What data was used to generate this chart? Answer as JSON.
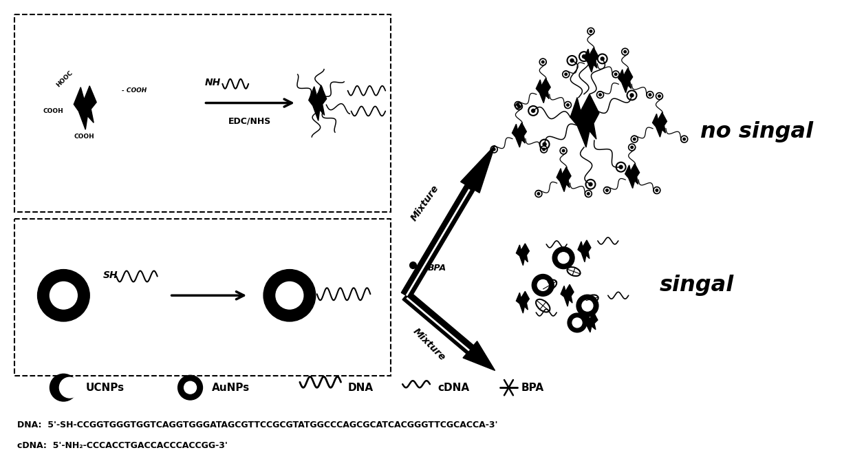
{
  "bg_color": "#ffffff",
  "text_no_signal": "no singal",
  "text_signal": "singal",
  "text_mixture_top": "Mixture",
  "text_mixture_bot": "Mixture",
  "text_bpa_label": "BPA",
  "text_edc": "EDC/NHS",
  "text_nh": "NH",
  "text_sh": "SH",
  "legend_ucnps": "UCNPs",
  "legend_aunps": "AuNPs",
  "legend_dna": "DNA",
  "legend_cdna": "cDNA",
  "legend_bpa": "BPA",
  "dna_seq": "DNA:  5'-SH-CCGGTGGGTGGTCAGGTGGGATAGCGTTCCGCGTATGGCCCAGCGCATCACGGGTTCGCACCA-3'",
  "cdna_seq": "cDNA:  5'-NH₂-CCCACCTGACCACCCACCGG-3'"
}
